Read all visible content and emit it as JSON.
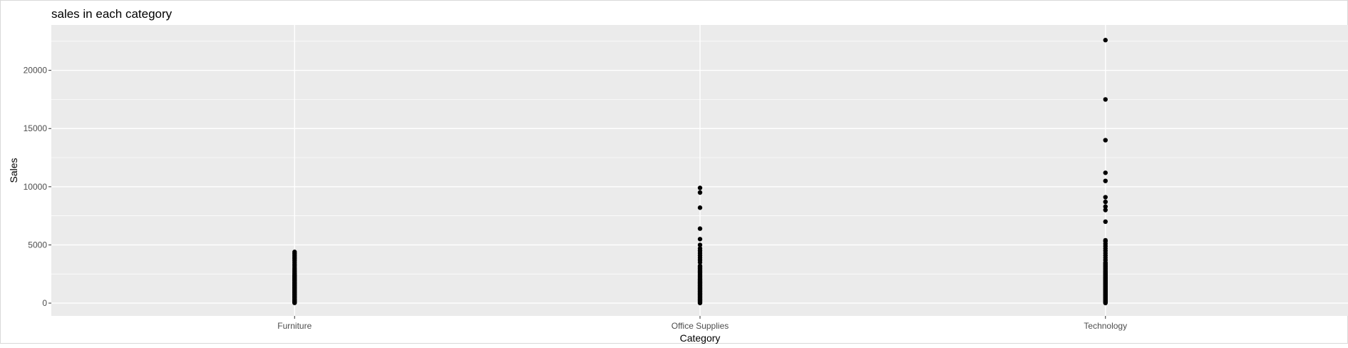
{
  "chart_data": {
    "type": "scatter",
    "title": "sales in each  category",
    "xlabel": "Category",
    "ylabel": "Sales",
    "categories": [
      "Furniture",
      "Office Supplies",
      "Technology"
    ],
    "ylim": [
      -1100,
      23900
    ],
    "yticks": [
      0,
      5000,
      10000,
      15000,
      20000
    ],
    "y_tick_labels": [
      "0",
      "5000",
      "10000",
      "15000",
      "20000"
    ],
    "grid": true,
    "panel_background": "#ebebeb",
    "grid_color": "#ffffff",
    "point_color": "#000000",
    "points": {
      "Furniture": [
        20,
        80,
        150,
        220,
        300,
        380,
        460,
        540,
        620,
        700,
        780,
        860,
        940,
        1020,
        1100,
        1180,
        1260,
        1340,
        1420,
        1500,
        1580,
        1660,
        1740,
        1820,
        1900,
        1980,
        2060,
        2140,
        2220,
        2300,
        2380,
        2460,
        2560,
        2680,
        2800,
        2920,
        3040,
        3200,
        3350,
        3500,
        3650,
        3800,
        3950,
        4100,
        4250,
        4400
      ],
      "Office Supplies": [
        10,
        70,
        140,
        210,
        280,
        350,
        420,
        490,
        560,
        630,
        700,
        770,
        840,
        910,
        980,
        1050,
        1120,
        1190,
        1260,
        1330,
        1400,
        1470,
        1540,
        1610,
        1680,
        1750,
        1820,
        1890,
        1960,
        2030,
        2100,
        2200,
        2300,
        2400,
        2500,
        2600,
        2700,
        2800,
        2900,
        3000,
        3100,
        3200,
        3500,
        3700,
        3900,
        4100,
        4300,
        4500,
        4700,
        5000,
        5500,
        6400,
        8200,
        9500,
        9900
      ],
      "Technology": [
        10,
        80,
        150,
        220,
        290,
        360,
        430,
        500,
        570,
        640,
        710,
        780,
        850,
        920,
        990,
        1060,
        1130,
        1200,
        1270,
        1340,
        1410,
        1480,
        1550,
        1620,
        1690,
        1760,
        1830,
        1900,
        1970,
        2040,
        2110,
        2180,
        2250,
        2320,
        2390,
        2460,
        2530,
        2600,
        2700,
        2800,
        2900,
        3000,
        3100,
        3200,
        3300,
        3400,
        3500,
        3700,
        3900,
        4100,
        4300,
        4500,
        4700,
        4900,
        5100,
        5300,
        5400,
        7000,
        8000,
        8300,
        8700,
        9100,
        10500,
        11200,
        14000,
        17500,
        22600
      ]
    }
  }
}
